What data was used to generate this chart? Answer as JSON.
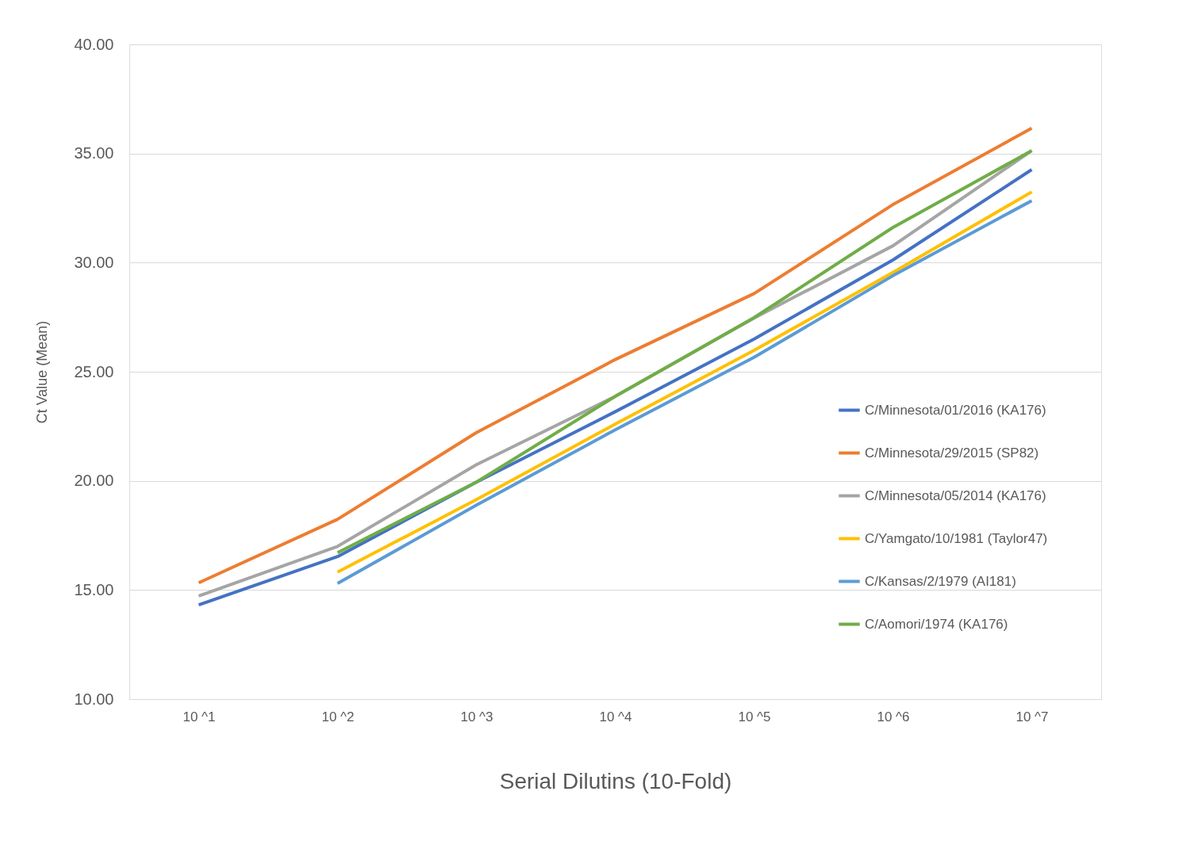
{
  "chart_data": {
    "type": "line",
    "xlabel": "Serial Dilutins (10-Fold)",
    "ylabel": "Ct Value (Mean)",
    "categories": [
      "10 ^1",
      "10 ^2",
      "10 ^3",
      "10 ^4",
      "10 ^5",
      "10 ^6",
      "10 ^7"
    ],
    "series": [
      {
        "name": "C/Minnesota/01/2016 (KA176)",
        "color": "#4472c4",
        "values": [
          14.32,
          16.53,
          19.94,
          23.17,
          26.5,
          30.12,
          34.26
        ]
      },
      {
        "name": "C/Minnesota/29/2015 (SP82)",
        "color": "#ed7d31",
        "values": [
          15.33,
          18.24,
          22.21,
          25.56,
          28.58,
          32.66,
          36.16
        ]
      },
      {
        "name": "C/Minnesota/05/2014 (KA176)",
        "color": "#a5a5a5",
        "values": [
          14.73,
          17.0,
          20.74,
          23.87,
          27.46,
          30.77,
          35.13
        ]
      },
      {
        "name": "C/Yamgato/10/1981 (Taylor47)",
        "color": "#ffc000",
        "values": [
          null,
          15.82,
          19.14,
          22.6,
          25.98,
          29.55,
          33.24
        ]
      },
      {
        "name": "C/Kansas/2/1979 (AI181)",
        "color": "#5b9bd5",
        "values": [
          null,
          15.3,
          18.89,
          22.34,
          25.66,
          29.4,
          32.84
        ]
      },
      {
        "name": "C/Aomori/1974 (KA176)",
        "color": "#70ad47",
        "values": [
          null,
          16.71,
          19.94,
          23.87,
          27.48,
          31.61,
          35.13
        ]
      }
    ],
    "ylim": [
      10,
      40
    ],
    "yticks": [
      {
        "value": 10,
        "label": "10.00"
      },
      {
        "value": 15,
        "label": "15.00"
      },
      {
        "value": 20,
        "label": "20.00"
      },
      {
        "value": 25,
        "label": "25.00"
      },
      {
        "value": 30,
        "label": "30.00"
      },
      {
        "value": 35,
        "label": "35.00"
      },
      {
        "value": 40,
        "label": "40.00"
      }
    ],
    "grid": "y",
    "legend": "right",
    "marker": "none",
    "line_style": "solid"
  }
}
